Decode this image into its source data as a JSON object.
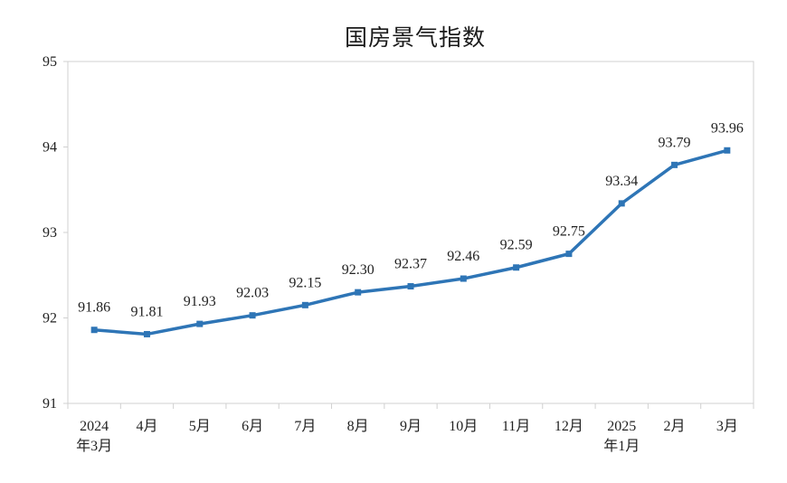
{
  "chart_data": {
    "type": "line",
    "title": "国房景气指数",
    "xlabel": "",
    "ylabel": "",
    "ylim": [
      91,
      95
    ],
    "yticks": [
      "91",
      "92",
      "93",
      "94",
      "95"
    ],
    "categories": [
      [
        "2024",
        "年3月"
      ],
      [
        "4月"
      ],
      [
        "5月"
      ],
      [
        "6月"
      ],
      [
        "7月"
      ],
      [
        "8月"
      ],
      [
        "9月"
      ],
      [
        "10月"
      ],
      [
        "11月"
      ],
      [
        "12月"
      ],
      [
        "2025",
        "年1月"
      ],
      [
        "2月"
      ],
      [
        "3月"
      ]
    ],
    "series": [
      {
        "values": [
          91.86,
          91.81,
          91.93,
          92.03,
          92.15,
          92.3,
          92.37,
          92.46,
          92.59,
          92.75,
          93.34,
          93.79,
          93.96
        ],
        "labels": [
          "91.86",
          "91.81",
          "91.93",
          "92.03",
          "92.15",
          "92.30",
          "92.37",
          "92.46",
          "92.59",
          "92.75",
          "93.34",
          "93.79",
          "93.96"
        ],
        "color": "#2e75b6"
      }
    ],
    "grid": false,
    "legend": "none"
  }
}
